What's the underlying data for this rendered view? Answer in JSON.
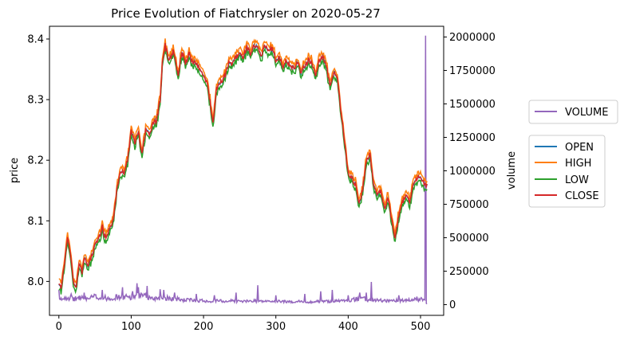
{
  "chart_data": {
    "type": "line",
    "title": "Price Evolution of Fiatchrysler on 2020-05-27",
    "xlabel": "",
    "ylabel": "price",
    "y2label": "volume",
    "xlim": [
      -13,
      532
    ],
    "ylim": [
      7.944,
      8.421
    ],
    "y2lim": [
      -80000,
      2080000
    ],
    "x_ticks": [
      0,
      100,
      200,
      300,
      400,
      500
    ],
    "y_ticks": [
      8.0,
      8.1,
      8.2,
      8.3,
      8.4
    ],
    "y2_ticks": [
      0,
      250000,
      500000,
      750000,
      1000000,
      1250000,
      1500000,
      1750000,
      2000000
    ],
    "grid": false,
    "price_keypoints": [
      [
        0,
        7.995
      ],
      [
        3,
        7.99
      ],
      [
        8,
        8.03
      ],
      [
        12,
        8.075
      ],
      [
        16,
        8.045
      ],
      [
        20,
        8.0
      ],
      [
        24,
        7.99
      ],
      [
        28,
        8.03
      ],
      [
        32,
        8.015
      ],
      [
        36,
        8.04
      ],
      [
        40,
        8.025
      ],
      [
        45,
        8.04
      ],
      [
        50,
        8.06
      ],
      [
        55,
        8.07
      ],
      [
        60,
        8.09
      ],
      [
        65,
        8.07
      ],
      [
        70,
        8.085
      ],
      [
        75,
        8.1
      ],
      [
        80,
        8.15
      ],
      [
        85,
        8.18
      ],
      [
        90,
        8.18
      ],
      [
        95,
        8.2
      ],
      [
        100,
        8.25
      ],
      [
        105,
        8.23
      ],
      [
        110,
        8.245
      ],
      [
        115,
        8.21
      ],
      [
        120,
        8.25
      ],
      [
        125,
        8.24
      ],
      [
        130,
        8.26
      ],
      [
        135,
        8.265
      ],
      [
        140,
        8.3
      ],
      [
        143,
        8.36
      ],
      [
        147,
        8.39
      ],
      [
        152,
        8.365
      ],
      [
        158,
        8.38
      ],
      [
        165,
        8.34
      ],
      [
        170,
        8.38
      ],
      [
        175,
        8.36
      ],
      [
        180,
        8.375
      ],
      [
        185,
        8.36
      ],
      [
        190,
        8.36
      ],
      [
        195,
        8.35
      ],
      [
        200,
        8.34
      ],
      [
        205,
        8.325
      ],
      [
        210,
        8.29
      ],
      [
        213,
        8.26
      ],
      [
        218,
        8.32
      ],
      [
        225,
        8.33
      ],
      [
        230,
        8.34
      ],
      [
        235,
        8.36
      ],
      [
        240,
        8.36
      ],
      [
        245,
        8.37
      ],
      [
        250,
        8.38
      ],
      [
        255,
        8.37
      ],
      [
        260,
        8.385
      ],
      [
        265,
        8.375
      ],
      [
        270,
        8.39
      ],
      [
        275,
        8.385
      ],
      [
        280,
        8.37
      ],
      [
        285,
        8.39
      ],
      [
        290,
        8.38
      ],
      [
        295,
        8.385
      ],
      [
        300,
        8.365
      ],
      [
        305,
        8.37
      ],
      [
        310,
        8.355
      ],
      [
        315,
        8.365
      ],
      [
        320,
        8.355
      ],
      [
        325,
        8.35
      ],
      [
        330,
        8.36
      ],
      [
        335,
        8.345
      ],
      [
        340,
        8.355
      ],
      [
        345,
        8.365
      ],
      [
        350,
        8.36
      ],
      [
        355,
        8.34
      ],
      [
        360,
        8.365
      ],
      [
        365,
        8.37
      ],
      [
        370,
        8.355
      ],
      [
        375,
        8.32
      ],
      [
        380,
        8.345
      ],
      [
        385,
        8.335
      ],
      [
        390,
        8.28
      ],
      [
        395,
        8.23
      ],
      [
        400,
        8.18
      ],
      [
        405,
        8.17
      ],
      [
        410,
        8.16
      ],
      [
        415,
        8.13
      ],
      [
        420,
        8.15
      ],
      [
        425,
        8.2
      ],
      [
        430,
        8.21
      ],
      [
        435,
        8.16
      ],
      [
        440,
        8.14
      ],
      [
        445,
        8.15
      ],
      [
        450,
        8.12
      ],
      [
        455,
        8.14
      ],
      [
        460,
        8.1
      ],
      [
        465,
        8.07
      ],
      [
        470,
        8.11
      ],
      [
        475,
        8.13
      ],
      [
        480,
        8.14
      ],
      [
        485,
        8.13
      ],
      [
        490,
        8.16
      ],
      [
        495,
        8.17
      ],
      [
        500,
        8.175
      ],
      [
        505,
        8.16
      ],
      [
        509,
        8.16
      ]
    ],
    "volume_keypoints": [
      [
        0,
        30000
      ],
      [
        10,
        60000
      ],
      [
        20,
        40000
      ],
      [
        30,
        55000
      ],
      [
        40,
        45000
      ],
      [
        50,
        60000
      ],
      [
        60,
        50000
      ],
      [
        70,
        50000
      ],
      [
        80,
        55000
      ],
      [
        90,
        55000
      ],
      [
        100,
        60000
      ],
      [
        110,
        65000
      ],
      [
        120,
        60000
      ],
      [
        130,
        45000
      ],
      [
        140,
        55000
      ],
      [
        150,
        50000
      ],
      [
        160,
        45000
      ],
      [
        170,
        35000
      ],
      [
        180,
        35000
      ],
      [
        190,
        30000
      ],
      [
        200,
        30000
      ],
      [
        210,
        25000
      ],
      [
        220,
        30000
      ],
      [
        230,
        25000
      ],
      [
        240,
        30000
      ],
      [
        250,
        25000
      ],
      [
        260,
        25000
      ],
      [
        270,
        30000
      ],
      [
        280,
        25000
      ],
      [
        290,
        25000
      ],
      [
        300,
        25000
      ],
      [
        310,
        25000
      ],
      [
        320,
        20000
      ],
      [
        330,
        25000
      ],
      [
        340,
        20000
      ],
      [
        350,
        20000
      ],
      [
        360,
        25000
      ],
      [
        370,
        25000
      ],
      [
        380,
        25000
      ],
      [
        390,
        30000
      ],
      [
        400,
        30000
      ],
      [
        410,
        40000
      ],
      [
        420,
        45000
      ],
      [
        430,
        35000
      ],
      [
        440,
        35000
      ],
      [
        450,
        30000
      ],
      [
        460,
        30000
      ],
      [
        470,
        30000
      ],
      [
        480,
        30000
      ],
      [
        490,
        35000
      ],
      [
        500,
        40000
      ],
      [
        505,
        40000
      ],
      [
        509,
        5000
      ]
    ],
    "volume_spikes": [
      [
        0,
        110000
      ],
      [
        17,
        80000
      ],
      [
        35,
        90000
      ],
      [
        60,
        110000
      ],
      [
        88,
        130000
      ],
      [
        102,
        100000
      ],
      [
        108,
        160000
      ],
      [
        110,
        130000
      ],
      [
        122,
        140000
      ],
      [
        140,
        115000
      ],
      [
        145,
        110000
      ],
      [
        160,
        90000
      ],
      [
        190,
        80000
      ],
      [
        215,
        70000
      ],
      [
        245,
        90000
      ],
      [
        275,
        145000
      ],
      [
        300,
        70000
      ],
      [
        340,
        80000
      ],
      [
        362,
        100000
      ],
      [
        378,
        110000
      ],
      [
        400,
        70000
      ],
      [
        416,
        90000
      ],
      [
        425,
        90000
      ],
      [
        432,
        170000
      ],
      [
        470,
        70000
      ],
      [
        495,
        60000
      ],
      [
        507,
        2010000
      ]
    ],
    "series": [
      {
        "name": "OPEN",
        "color": "#1f77b4"
      },
      {
        "name": "HIGH",
        "color": "#ff7f0e"
      },
      {
        "name": "LOW",
        "color": "#2ca02c"
      },
      {
        "name": "CLOSE",
        "color": "#d62728"
      },
      {
        "name": "VOLUME",
        "color": "#9467bd"
      }
    ]
  }
}
